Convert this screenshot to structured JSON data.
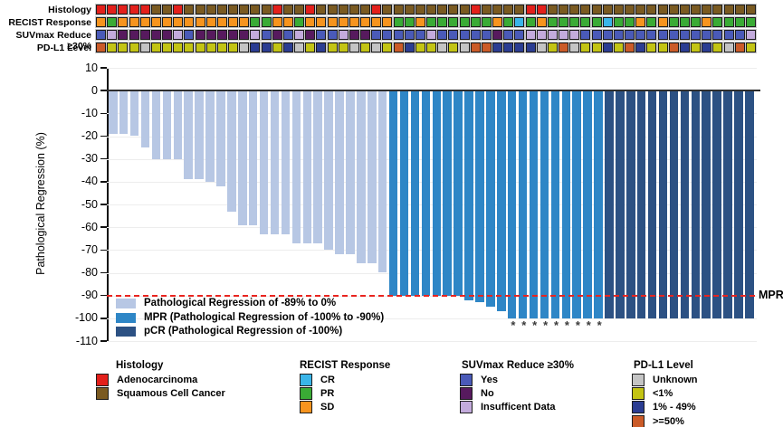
{
  "figure": {
    "annotation_palette": {
      "A": "#e3201b",
      "S": "#7a5a21",
      "CR": "#3ab5e9",
      "PR": "#3aab35",
      "SD": "#f7941e",
      "Y": "#4a5ab8",
      "N": "#571a5e",
      "I": "#c3abdc",
      "U": "#c4c4c4",
      "L": "#c3c414",
      "M": "#2b3d92",
      "H": "#cb5b28"
    },
    "annotation_rows": [
      {
        "key": "histology",
        "label": "Histology",
        "codes": [
          "A",
          "A",
          "A",
          "A",
          "A",
          "S",
          "S",
          "A",
          "S",
          "S",
          "S",
          "S",
          "S",
          "S",
          "S",
          "S",
          "A",
          "S",
          "S",
          "A",
          "S",
          "S",
          "S",
          "S",
          "S",
          "A",
          "S",
          "S",
          "S",
          "S",
          "S",
          "S",
          "S",
          "S",
          "A",
          "S",
          "S",
          "S",
          "S",
          "A",
          "A",
          "S",
          "S",
          "S",
          "S",
          "S",
          "S",
          "S",
          "S",
          "S",
          "S",
          "S",
          "S",
          "S",
          "S",
          "S",
          "S",
          "S",
          "S",
          "S"
        ]
      },
      {
        "key": "recist-response",
        "label": "RECIST Response",
        "codes": [
          "SD",
          "PR",
          "SD",
          "SD",
          "SD",
          "SD",
          "SD",
          "SD",
          "SD",
          "SD",
          "SD",
          "SD",
          "SD",
          "SD",
          "PR",
          "PR",
          "SD",
          "SD",
          "PR",
          "SD",
          "SD",
          "SD",
          "SD",
          "SD",
          "SD",
          "SD",
          "SD",
          "PR",
          "PR",
          "SD",
          "PR",
          "PR",
          "PR",
          "PR",
          "PR",
          "PR",
          "SD",
          "PR",
          "CR",
          "PR",
          "SD",
          "PR",
          "PR",
          "PR",
          "PR",
          "PR",
          "CR",
          "PR",
          "PR",
          "SD",
          "PR",
          "SD",
          "PR",
          "PR",
          "PR",
          "SD",
          "PR",
          "PR",
          "PR",
          "PR"
        ]
      },
      {
        "key": "suvmax-reduce",
        "label": "SUVmax Reduce ≥30%",
        "codes": [
          "Y",
          "I",
          "N",
          "N",
          "N",
          "N",
          "N",
          "I",
          "Y",
          "N",
          "N",
          "N",
          "N",
          "N",
          "I",
          "Y",
          "N",
          "Y",
          "I",
          "N",
          "Y",
          "Y",
          "I",
          "N",
          "N",
          "Y",
          "Y",
          "Y",
          "Y",
          "Y",
          "I",
          "Y",
          "Y",
          "Y",
          "Y",
          "Y",
          "N",
          "Y",
          "Y",
          "I",
          "I",
          "I",
          "I",
          "I",
          "Y",
          "Y",
          "Y",
          "Y",
          "Y",
          "Y",
          "Y",
          "Y",
          "Y",
          "Y",
          "Y",
          "Y",
          "Y",
          "Y",
          "Y",
          "I"
        ]
      },
      {
        "key": "pdl1-level",
        "label": "PD-L1 Level",
        "codes": [
          "H",
          "L",
          "L",
          "L",
          "U",
          "L",
          "L",
          "L",
          "L",
          "L",
          "L",
          "L",
          "L",
          "U",
          "M",
          "M",
          "L",
          "M",
          "U",
          "L",
          "M",
          "L",
          "L",
          "U",
          "L",
          "U",
          "L",
          "H",
          "M",
          "L",
          "L",
          "U",
          "L",
          "U",
          "H",
          "H",
          "M",
          "M",
          "M",
          "M",
          "U",
          "L",
          "H",
          "U",
          "L",
          "L",
          "M",
          "L",
          "H",
          "M",
          "L",
          "L",
          "H",
          "M",
          "L",
          "M",
          "L",
          "U",
          "H",
          "L"
        ]
      }
    ]
  },
  "chart_data": {
    "type": "bar",
    "subtype": "waterfall",
    "title": "",
    "xlabel": "",
    "ylabel": "Pathological Regression (%)",
    "ylim": [
      -110,
      10
    ],
    "yticks": [
      10,
      0,
      -10,
      -20,
      -30,
      -40,
      -50,
      -60,
      -70,
      -80,
      -90,
      -100,
      -110
    ],
    "grid": "horizontal-light",
    "values": [
      -19,
      -19,
      -20,
      -25,
      -30,
      -30,
      -30,
      -39,
      -39,
      -40,
      -42,
      -53,
      -59,
      -59,
      -63,
      -63,
      -63,
      -67,
      -67,
      -67,
      -70,
      -72,
      -72,
      -76,
      -76,
      -80,
      -90,
      -90,
      -90,
      -90,
      -90,
      -90,
      -90,
      -92,
      -93,
      -95,
      -97,
      -100,
      -100,
      -100,
      -100,
      -100,
      -100,
      -100,
      -100,
      -100,
      -100,
      -100,
      -100,
      -100,
      -100,
      -100,
      -100,
      -100,
      -100,
      -100,
      -100,
      -100,
      -100,
      -100
    ],
    "bar_groups": [
      "L",
      "L",
      "L",
      "L",
      "L",
      "L",
      "L",
      "L",
      "L",
      "L",
      "L",
      "L",
      "L",
      "L",
      "L",
      "L",
      "L",
      "L",
      "L",
      "L",
      "L",
      "L",
      "L",
      "L",
      "L",
      "L",
      "M",
      "M",
      "M",
      "M",
      "M",
      "M",
      "M",
      "M",
      "M",
      "M",
      "M",
      "M",
      "M",
      "M",
      "M",
      "M",
      "M",
      "M",
      "M",
      "M",
      "D",
      "D",
      "D",
      "D",
      "D",
      "D",
      "D",
      "D",
      "D",
      "D",
      "D",
      "D",
      "D",
      "D"
    ],
    "group_colors": {
      "L": "#b7c7e4",
      "M": "#2e86c6",
      "D": "#2c5183"
    },
    "reference_line": {
      "y": -90,
      "style": "dashed",
      "color": "#e8241f",
      "label": "MPR"
    },
    "asterisk_marker": {
      "symbol": "*",
      "bar_indices": [
        38,
        39,
        40,
        41,
        42,
        43,
        44,
        45,
        46
      ]
    },
    "legend": {
      "position": "inside-bottom-left",
      "entries": [
        {
          "label": "Pathological Regression of -89% to 0%",
          "color": "#b7c7e4"
        },
        {
          "label": "MPR (Pathological Regression of -100% to -90%)",
          "color": "#2e86c6"
        },
        {
          "label": "pCR (Pathological Regression of -100%)",
          "color": "#2c5183"
        }
      ]
    }
  },
  "bottom_legends": [
    {
      "title": "Histology",
      "items": [
        {
          "label": "Adenocarcinoma",
          "color": "#e3201b"
        },
        {
          "label": "Squamous Cell Cancer",
          "color": "#7a5a21"
        }
      ]
    },
    {
      "title": "RECIST Response",
      "items": [
        {
          "label": "CR",
          "color": "#3ab5e9"
        },
        {
          "label": "PR",
          "color": "#3aab35"
        },
        {
          "label": "SD",
          "color": "#f7941e"
        }
      ]
    },
    {
      "title": "SUVmax Reduce ≥30%",
      "items": [
        {
          "label": "Yes",
          "color": "#4a5ab8"
        },
        {
          "label": "No",
          "color": "#571a5e"
        },
        {
          "label": "Insufficent Data",
          "color": "#c3abdc"
        }
      ]
    },
    {
      "title": "PD-L1 Level",
      "items": [
        {
          "label": "Unknown",
          "color": "#c4c4c4"
        },
        {
          "label": "<1%",
          "color": "#c3c414"
        },
        {
          "label": "1% - 49%",
          "color": "#2b3d92"
        },
        {
          "label": ">=50%",
          "color": "#cb5b28"
        }
      ]
    }
  ]
}
